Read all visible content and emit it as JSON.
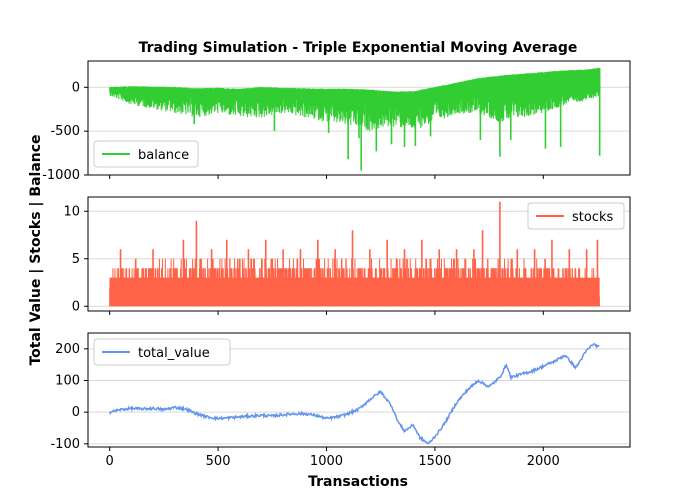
{
  "chart_data": [
    {
      "type": "line",
      "panel": "top",
      "title": "Trading Simulation - Triple Exponential Moving Average",
      "xlim": [
        -100,
        2400
      ],
      "ylim": [
        -1000,
        300
      ],
      "yticks": [
        0,
        -500,
        -1000
      ],
      "grid": "y",
      "legend": "lower-left",
      "series": [
        {
          "name": "balance",
          "color": "#32cd32",
          "x": [
            0,
            100,
            200,
            300,
            400,
            500,
            600,
            700,
            800,
            900,
            1000,
            1100,
            1200,
            1300,
            1400,
            1500,
            1600,
            1700,
            1800,
            1900,
            2000,
            2100,
            2200,
            2260
          ],
          "upper": [
            0,
            10,
            5,
            0,
            -15,
            -10,
            -20,
            0,
            -10,
            -15,
            -20,
            -20,
            -30,
            -50,
            -50,
            0,
            50,
            100,
            130,
            150,
            170,
            190,
            200,
            220
          ],
          "lower": [
            -100,
            -200,
            -250,
            -300,
            -350,
            -300,
            -350,
            -350,
            -300,
            -350,
            -400,
            -450,
            -500,
            -450,
            -500,
            -400,
            -300,
            -300,
            -400,
            -350,
            -300,
            -200,
            -150,
            -100
          ],
          "spikes": [
            {
              "x": 390,
              "y": -420
            },
            {
              "x": 760,
              "y": -500
            },
            {
              "x": 1010,
              "y": -520
            },
            {
              "x": 1100,
              "y": -820
            },
            {
              "x": 1150,
              "y": -580
            },
            {
              "x": 1160,
              "y": -950
            },
            {
              "x": 1230,
              "y": -730
            },
            {
              "x": 1300,
              "y": -650
            },
            {
              "x": 1360,
              "y": -680
            },
            {
              "x": 1410,
              "y": -670
            },
            {
              "x": 1480,
              "y": -560
            },
            {
              "x": 1710,
              "y": -600
            },
            {
              "x": 1800,
              "y": -790
            },
            {
              "x": 1850,
              "y": -600
            },
            {
              "x": 2010,
              "y": -700
            },
            {
              "x": 2080,
              "y": -680
            },
            {
              "x": 2260,
              "y": -780
            }
          ]
        }
      ]
    },
    {
      "type": "line",
      "panel": "middle",
      "xlim": [
        -100,
        2400
      ],
      "ylim": [
        -0.5,
        11.5
      ],
      "yticks": [
        0,
        5,
        10
      ],
      "grid": "y",
      "legend": "upper-right",
      "series": [
        {
          "name": "stocks",
          "color": "#ff6347",
          "x": [
            0,
            250,
            500,
            750,
            1000,
            1250,
            1500,
            1750,
            2000,
            2260
          ],
          "base": [
            3,
            4,
            4,
            4,
            4,
            4,
            4,
            4,
            4,
            3
          ],
          "spikes": [
            {
              "x": 50,
              "y": 6
            },
            {
              "x": 120,
              "y": 5
            },
            {
              "x": 200,
              "y": 6
            },
            {
              "x": 340,
              "y": 7
            },
            {
              "x": 400,
              "y": 9
            },
            {
              "x": 470,
              "y": 6
            },
            {
              "x": 540,
              "y": 7
            },
            {
              "x": 640,
              "y": 6
            },
            {
              "x": 720,
              "y": 7
            },
            {
              "x": 800,
              "y": 6
            },
            {
              "x": 880,
              "y": 6
            },
            {
              "x": 960,
              "y": 7
            },
            {
              "x": 1040,
              "y": 6
            },
            {
              "x": 1120,
              "y": 8
            },
            {
              "x": 1200,
              "y": 6
            },
            {
              "x": 1280,
              "y": 7
            },
            {
              "x": 1360,
              "y": 6
            },
            {
              "x": 1440,
              "y": 7
            },
            {
              "x": 1520,
              "y": 6
            },
            {
              "x": 1600,
              "y": 6
            },
            {
              "x": 1680,
              "y": 6
            },
            {
              "x": 1720,
              "y": 8
            },
            {
              "x": 1800,
              "y": 11
            },
            {
              "x": 1880,
              "y": 6
            },
            {
              "x": 1960,
              "y": 6
            },
            {
              "x": 2040,
              "y": 7
            },
            {
              "x": 2120,
              "y": 6
            },
            {
              "x": 2200,
              "y": 6
            },
            {
              "x": 2250,
              "y": 7
            }
          ]
        }
      ]
    },
    {
      "type": "line",
      "panel": "bottom",
      "xlabel": "Transactions",
      "xlim": [
        -100,
        2400
      ],
      "ylim": [
        -110,
        250
      ],
      "xticks": [
        0,
        500,
        1000,
        1500,
        2000
      ],
      "yticks": [
        -100,
        0,
        100,
        200
      ],
      "grid": "y",
      "legend": "upper-left",
      "series": [
        {
          "name": "total_value",
          "color": "#6495ed",
          "x": [
            0,
            50,
            100,
            150,
            200,
            250,
            300,
            350,
            400,
            450,
            500,
            550,
            600,
            650,
            700,
            750,
            800,
            850,
            900,
            950,
            1000,
            1050,
            1100,
            1150,
            1200,
            1250,
            1300,
            1330,
            1360,
            1400,
            1430,
            1470,
            1490,
            1520,
            1550,
            1600,
            1650,
            1700,
            1750,
            1800,
            1830,
            1850,
            1900,
            1950,
            2000,
            2050,
            2100,
            2150,
            2200,
            2230,
            2260
          ],
          "y": [
            0,
            8,
            12,
            10,
            12,
            8,
            15,
            10,
            -5,
            -15,
            -20,
            -18,
            -15,
            -12,
            -10,
            -12,
            -8,
            -5,
            -5,
            -10,
            -20,
            -15,
            -5,
            10,
            40,
            65,
            20,
            -30,
            -60,
            -40,
            -80,
            -100,
            -85,
            -60,
            -30,
            30,
            70,
            100,
            80,
            110,
            150,
            110,
            120,
            130,
            145,
            160,
            180,
            140,
            195,
            215,
            205
          ]
        }
      ]
    }
  ],
  "shared_ylabel": "Total Value | Stocks | Balance"
}
